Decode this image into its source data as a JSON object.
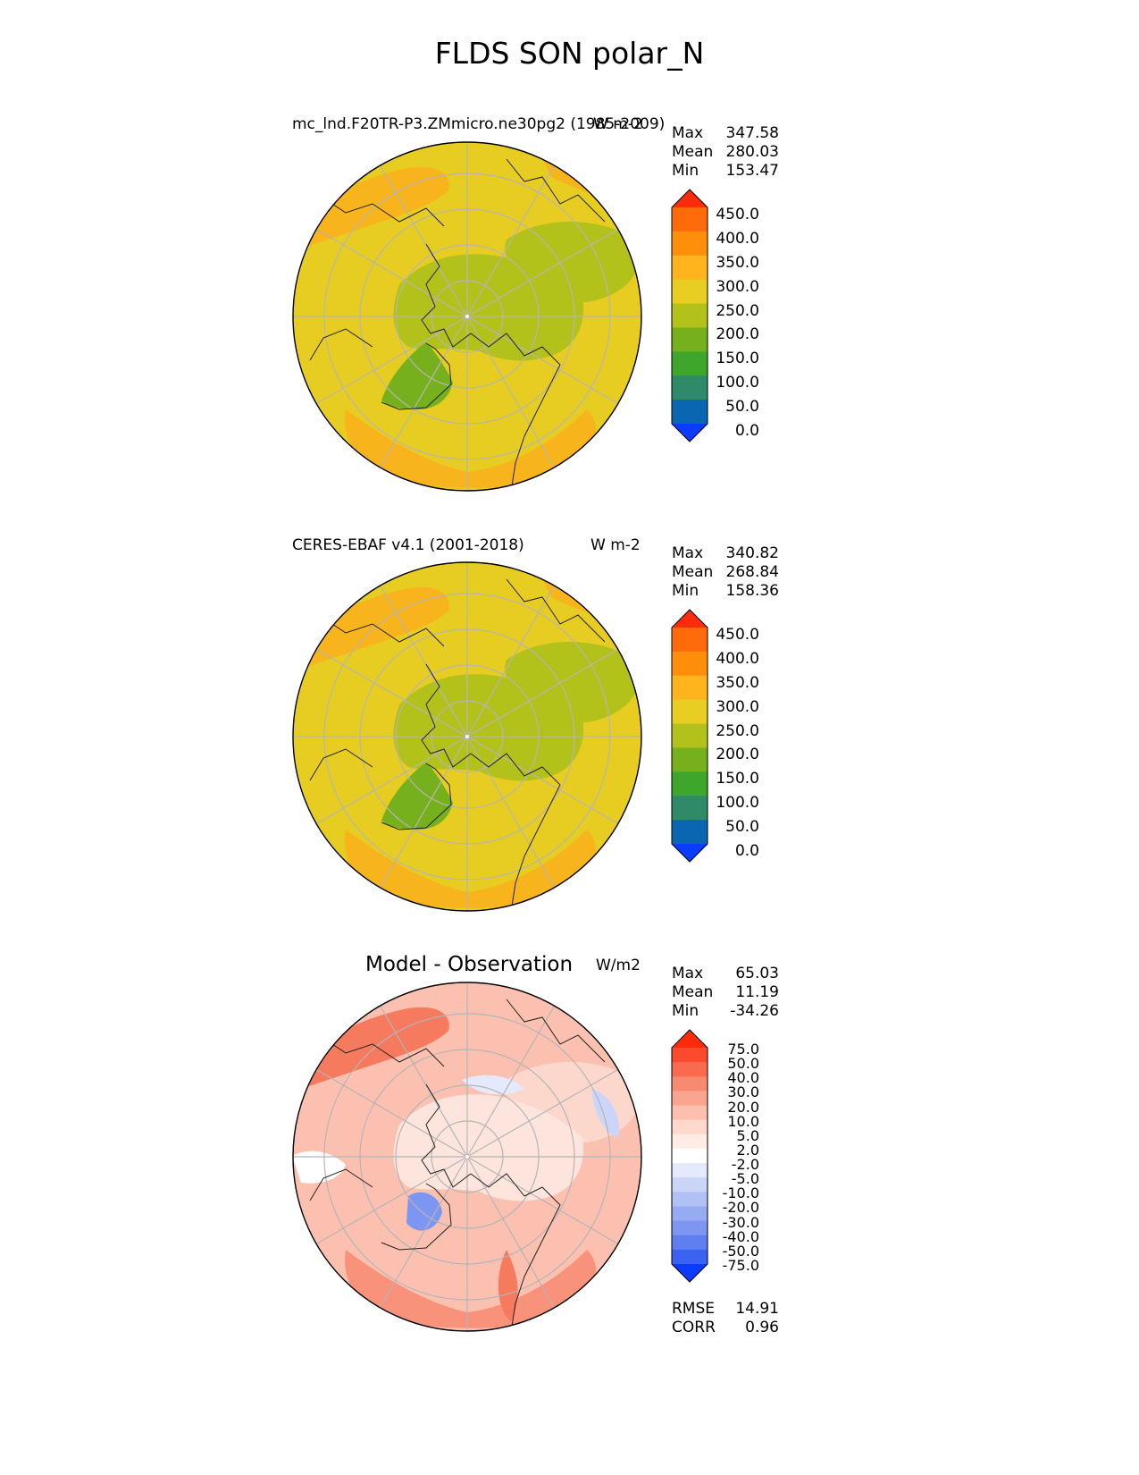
{
  "figure": {
    "title": "FLDS SON polar_N"
  },
  "panels": [
    {
      "id": "test",
      "title_left": "mc_lnd.F20TR-P3.ZMmicro.ne30pg2 (1985-2009)",
      "units": "W m-2",
      "stats": {
        "max_label": "Max",
        "max": "347.58",
        "mean_label": "Mean",
        "mean": "280.03",
        "min_label": "Min",
        "min": "153.47"
      },
      "colors": {
        "low": "#f7b41c",
        "mid": "#e7cd22",
        "high": "#b3c11b",
        "highest": "#76b11d"
      }
    },
    {
      "id": "ref",
      "title_left": "CERES-EBAF v4.1 (2001-2018)",
      "units": "W m-2",
      "stats": {
        "max_label": "Max",
        "max": "340.82",
        "mean_label": "Mean",
        "mean": "268.84",
        "min_label": "Min",
        "min": "158.36"
      },
      "colors": {
        "low": "#f7b41c",
        "mid": "#e7cd22",
        "high": "#b3c11b",
        "highest": "#76b11d"
      }
    },
    {
      "id": "diff",
      "title_left": "Model - Observation",
      "units": "W/m2",
      "stats": {
        "max_label": "Max",
        "max": "65.03",
        "mean_label": "Mean",
        "mean": "11.19",
        "min_label": "Min",
        "min": "-34.26"
      },
      "metrics": {
        "rmse_label": "RMSE",
        "rmse": "14.91",
        "corr_label": "CORR",
        "corr": "0.96"
      }
    }
  ],
  "chart_data": [
    {
      "type": "heatmap",
      "projection": "north polar stereographic",
      "title": "mc_lnd.F20TR-P3.ZMmicro.ne30pg2 (1985-2009)",
      "units": "W m-2",
      "max": 347.58,
      "mean": 280.03,
      "min": 153.47,
      "colorbar": {
        "ticks": [
          "450.0",
          "400.0",
          "350.0",
          "300.0",
          "250.0",
          "200.0",
          "150.0",
          "100.0",
          "50.0",
          "0.0"
        ],
        "colors": [
          "#ff2b0a",
          "#ff6a0a",
          "#ff8f0a",
          "#ffb31c",
          "#e8cd22",
          "#b3c11b",
          "#76b11d",
          "#3ea62a",
          "#2f8a6a",
          "#0a66b0",
          "#0a3cff"
        ],
        "extend": "both"
      }
    },
    {
      "type": "heatmap",
      "projection": "north polar stereographic",
      "title": "CERES-EBAF v4.1 (2001-2018)",
      "units": "W m-2",
      "max": 340.82,
      "mean": 268.84,
      "min": 158.36,
      "colorbar": {
        "ticks": [
          "450.0",
          "400.0",
          "350.0",
          "300.0",
          "250.0",
          "200.0",
          "150.0",
          "100.0",
          "50.0",
          "0.0"
        ],
        "colors": [
          "#ff2b0a",
          "#ff6a0a",
          "#ff8f0a",
          "#ffb31c",
          "#e8cd22",
          "#b3c11b",
          "#76b11d",
          "#3ea62a",
          "#2f8a6a",
          "#0a66b0",
          "#0a3cff"
        ],
        "extend": "both"
      }
    },
    {
      "type": "heatmap",
      "projection": "north polar stereographic",
      "title": "Model - Observation",
      "units": "W/m2",
      "max": 65.03,
      "mean": 11.19,
      "min": -34.26,
      "rmse": 14.91,
      "corr": 0.96,
      "colorbar": {
        "ticks": [
          "75.0",
          "50.0",
          "40.0",
          "30.0",
          "20.0",
          "10.0",
          "5.0",
          "2.0",
          "-2.0",
          "-5.0",
          "-10.0",
          "-20.0",
          "-30.0",
          "-40.0",
          "-50.0",
          "-75.0"
        ],
        "colors": [
          "#ff2b0a",
          "#fb4a2e",
          "#f96a4f",
          "#f98a72",
          "#fba48f",
          "#fdbfae",
          "#fed8cc",
          "#ffecE5",
          "#ffffff",
          "#e4e9fb",
          "#cbd5f8",
          "#b1c0f5",
          "#97abf3",
          "#7d96f1",
          "#5f7ff0",
          "#3c62f3",
          "#0a3cff"
        ],
        "extend": "both"
      }
    }
  ]
}
